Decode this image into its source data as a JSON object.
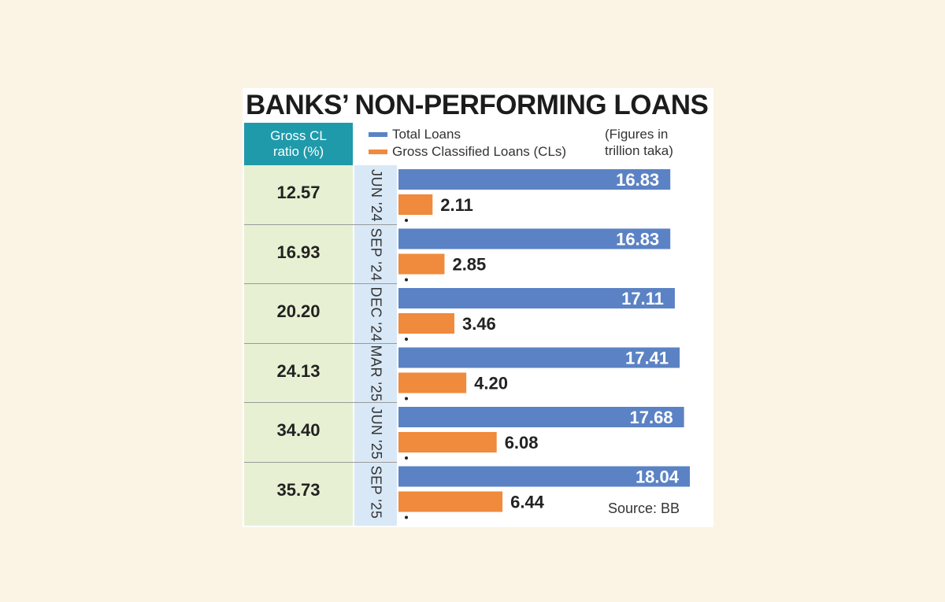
{
  "title": "BANKS’ NON-PERFORMING LOANS",
  "ratio_header": {
    "line1": "Gross CL",
    "line2": "ratio (%)"
  },
  "units_note": {
    "line1": "(Figures in",
    "line2": "trillion taka)"
  },
  "source": "Source: BB",
  "colors": {
    "total": "#5b82c4",
    "classified": "#f08a3c",
    "header": "#1f9aaa"
  },
  "chart_data": {
    "type": "bar",
    "orientation": "horizontal",
    "title": "BANKS’ NON-PERFORMING LOANS",
    "categories": [
      "JUN '24",
      "SEP '24",
      "DEC '24",
      "MAR '25",
      "JUN '25",
      "SEP '25"
    ],
    "series": [
      {
        "name": "Total Loans",
        "values": [
          16.83,
          16.83,
          17.11,
          17.41,
          17.68,
          18.04
        ]
      },
      {
        "name": "Gross Classified Loans (CLs)",
        "values": [
          2.11,
          2.85,
          3.46,
          4.2,
          6.08,
          6.44
        ]
      }
    ],
    "gross_cl_ratio": [
      "12.57",
      "16.93",
      "20.20",
      "24.13",
      "34.40",
      "35.73"
    ],
    "value_labels": {
      "total": [
        "16.83",
        "16.83",
        "17.11",
        "17.41",
        "17.68",
        "18.04"
      ],
      "classified": [
        "2.11",
        "2.85",
        "3.46",
        "4.20",
        "6.08",
        "6.44"
      ]
    },
    "xlim": [
      0,
      18.04
    ],
    "legend": "top"
  }
}
